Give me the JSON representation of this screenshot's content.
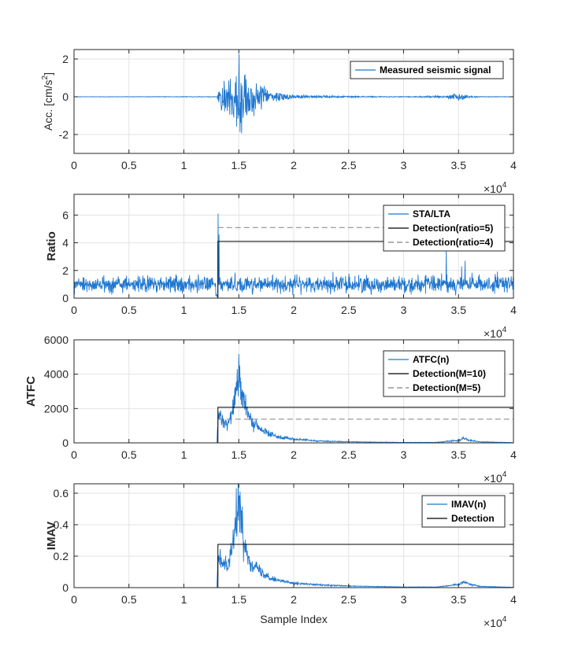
{
  "figure": {
    "xlabel": "Sample Index",
    "x_exponent_base": "×10",
    "x_exponent_power": "4"
  },
  "colors": {
    "signal": "#1f77d0",
    "detection": "#000000",
    "threshold_dashed": "#808080",
    "grid": "#e3e3e3",
    "axis": "#262626"
  },
  "chart_data": [
    {
      "type": "line",
      "ylabel_main": "Acc. [cm/s",
      "ylabel_sup": "2",
      "ylabel_tail": "]",
      "xlim": [
        0,
        4
      ],
      "ylim": [
        -3,
        2.5
      ],
      "x_ticks": [
        0,
        0.5,
        1,
        1.5,
        2,
        2.5,
        3,
        3.5,
        4
      ],
      "x_tick_labels": [
        "0",
        "0.5",
        "1",
        "1.5",
        "2",
        "2.5",
        "3",
        "3.5",
        "4"
      ],
      "y_ticks": [
        -2,
        0,
        2
      ],
      "y_tick_labels": [
        "-2",
        "0",
        "2"
      ],
      "grid": true,
      "legend_position": "top-right",
      "legend": [
        "Measured seismic signal"
      ],
      "series": [
        {
          "name": "Measured seismic signal",
          "kind": "oscillation",
          "style": "solid",
          "description_points_x": [
            0,
            1.3,
            1.33,
            1.45,
            1.5,
            1.6,
            1.8,
            2.0,
            2.5,
            3.0,
            3.38,
            3.5,
            3.6,
            3.7,
            4.0
          ],
          "envelope": [
            0.01,
            0.02,
            0.7,
            1.5,
            2.8,
            1.1,
            0.35,
            0.12,
            0.04,
            0.02,
            0.06,
            0.22,
            0.06,
            0.02,
            0.01
          ]
        }
      ]
    },
    {
      "type": "line",
      "ylabel": "Ratio",
      "xlim": [
        0,
        4
      ],
      "ylim": [
        0,
        7.5
      ],
      "x_ticks": [
        0,
        0.5,
        1,
        1.5,
        2,
        2.5,
        3,
        3.5,
        4
      ],
      "x_tick_labels": [
        "0",
        "0.5",
        "1",
        "1.5",
        "2",
        "2.5",
        "3",
        "3.5",
        "4"
      ],
      "y_ticks": [
        0,
        2,
        4,
        6
      ],
      "y_tick_labels": [
        "0",
        "2",
        "4",
        "6"
      ],
      "grid": true,
      "legend_position": "top-right",
      "legend": [
        "STA/LTA",
        "Detection(ratio=5)",
        "Detection(ratio=4)"
      ],
      "series": [
        {
          "name": "STA/LTA",
          "kind": "noise",
          "style": "solid",
          "baseline": 1.0,
          "spread": 0.6,
          "spikes": [
            [
              1.31,
              6.1
            ],
            [
              1.32,
              4.6
            ],
            [
              3.39,
              3.8
            ],
            [
              3.53,
              2.3
            ],
            [
              3.56,
              2.7
            ]
          ]
        },
        {
          "name": "Detection(ratio=5)",
          "kind": "step",
          "style": "solid",
          "x": [
            0,
            1.31,
            1.31,
            4
          ],
          "y": [
            0,
            0,
            4.1,
            4.1
          ]
        },
        {
          "name": "Detection(ratio=4)",
          "kind": "step",
          "style": "dashed",
          "x": [
            1.31,
            4
          ],
          "y": [
            5.1,
            5.1
          ]
        }
      ]
    },
    {
      "type": "line",
      "ylabel": "ATFC",
      "xlim": [
        0,
        4
      ],
      "ylim": [
        0,
        6000
      ],
      "x_ticks": [
        0,
        0.5,
        1,
        1.5,
        2,
        2.5,
        3,
        3.5,
        4
      ],
      "x_tick_labels": [
        "0",
        "0.5",
        "1",
        "1.5",
        "2",
        "2.5",
        "3",
        "3.5",
        "4"
      ],
      "y_ticks": [
        0,
        2000,
        4000,
        6000
      ],
      "y_tick_labels": [
        "0",
        "2000",
        "4000",
        "6000"
      ],
      "grid": true,
      "legend_position": "top-right",
      "legend": [
        "ATFC(n)",
        "Detection(M=10)",
        "Detection(M=5)"
      ],
      "series": [
        {
          "name": "ATFC(n)",
          "kind": "envelope",
          "style": "solid",
          "x": [
            0,
            1.3,
            1.31,
            1.33,
            1.36,
            1.4,
            1.44,
            1.47,
            1.49,
            1.5,
            1.52,
            1.55,
            1.6,
            1.7,
            1.8,
            1.9,
            2.0,
            2.2,
            2.5,
            3.0,
            3.3,
            3.4,
            3.5,
            3.55,
            3.6,
            3.7,
            4.0
          ],
          "y": [
            0,
            0,
            1300,
            1550,
            1250,
            1150,
            1900,
            3000,
            3900,
            4050,
            3300,
            2200,
            1350,
            750,
            480,
            320,
            220,
            120,
            60,
            25,
            30,
            90,
            150,
            280,
            160,
            60,
            15
          ],
          "noise": 0.18
        },
        {
          "name": "Detection(M=10)",
          "kind": "step",
          "style": "solid",
          "x": [
            0,
            1.31,
            1.31,
            4
          ],
          "y": [
            0,
            0,
            2070,
            2070
          ]
        },
        {
          "name": "Detection(M=5)",
          "kind": "step",
          "style": "dashed",
          "x": [
            1.31,
            4
          ],
          "y": [
            1380,
            1380
          ]
        }
      ]
    },
    {
      "type": "line",
      "ylabel": "IMAV",
      "xlim": [
        0,
        4
      ],
      "ylim": [
        0,
        0.66
      ],
      "x_ticks": [
        0,
        0.5,
        1,
        1.5,
        2,
        2.5,
        3,
        3.5,
        4
      ],
      "x_tick_labels": [
        "0",
        "0.5",
        "1",
        "1.5",
        "2",
        "2.5",
        "3",
        "3.5",
        "4"
      ],
      "y_ticks": [
        0,
        0.2,
        0.4,
        0.6
      ],
      "y_tick_labels": [
        "0",
        "0.2",
        "0.4",
        "0.6"
      ],
      "grid": true,
      "legend_position": "top-right",
      "legend": [
        "IMAV(n)",
        "Detection"
      ],
      "series": [
        {
          "name": "IMAV(n)",
          "kind": "envelope",
          "style": "solid",
          "x": [
            0,
            1.3,
            1.31,
            1.33,
            1.36,
            1.4,
            1.44,
            1.47,
            1.49,
            1.5,
            1.52,
            1.55,
            1.6,
            1.7,
            1.8,
            1.9,
            2.0,
            2.2,
            2.5,
            3.0,
            3.3,
            3.4,
            3.5,
            3.55,
            3.6,
            3.7,
            4.0
          ],
          "y": [
            0,
            0,
            0.17,
            0.19,
            0.15,
            0.16,
            0.26,
            0.4,
            0.52,
            0.55,
            0.42,
            0.28,
            0.17,
            0.1,
            0.06,
            0.04,
            0.03,
            0.018,
            0.01,
            0.004,
            0.004,
            0.012,
            0.02,
            0.04,
            0.022,
            0.008,
            0.002
          ],
          "noise": 0.16
        },
        {
          "name": "Detection",
          "kind": "step",
          "style": "solid",
          "x": [
            0,
            1.31,
            1.31,
            4
          ],
          "y": [
            0,
            0,
            0.275,
            0.275
          ]
        }
      ]
    }
  ]
}
